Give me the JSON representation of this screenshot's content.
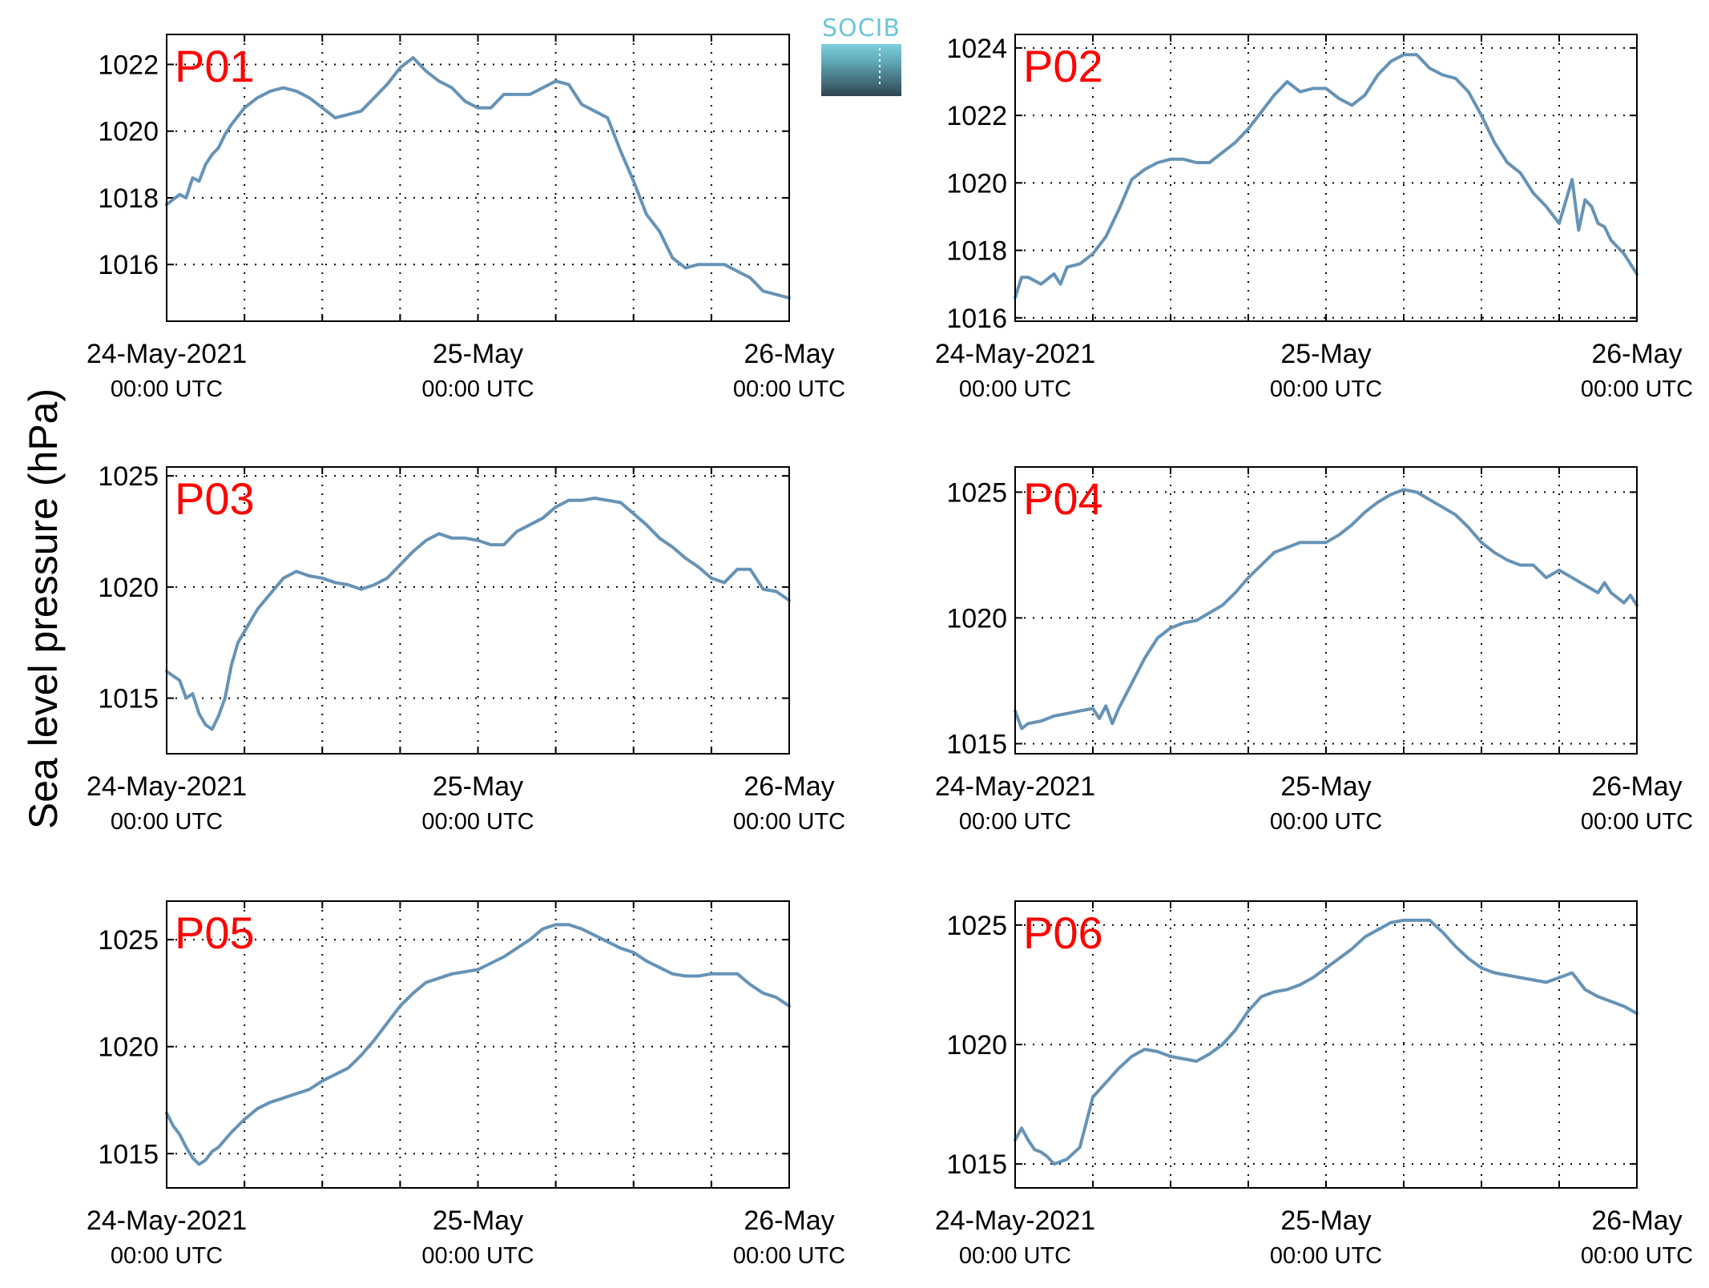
{
  "figure": {
    "ylabel": "Sea level pressure (hPa)",
    "logo_text": "SOCIB",
    "colors": {
      "series": "#6693b6",
      "panel_label": "#ff0000"
    }
  },
  "chart_data": [
    {
      "type": "line",
      "panel_label": "P01",
      "x_unit": "hours since 24-May-2021 00:00 UTC",
      "xlim": [
        0,
        48
      ],
      "xticks": [
        {
          "main": "24-May-2021",
          "sub": "00:00 UTC"
        },
        {
          "main": "25-May",
          "sub": "00:00 UTC"
        },
        {
          "main": "26-May",
          "sub": "00:00 UTC"
        }
      ],
      "ylim": [
        1014.3,
        1022.9
      ],
      "yticks": [
        1016,
        1018,
        1020,
        1022
      ],
      "grid": true,
      "x": [
        0,
        1,
        1.5,
        2,
        2.5,
        3,
        3.5,
        4,
        4.5,
        5,
        6,
        7,
        8,
        9,
        10,
        11,
        12,
        13,
        14,
        15,
        16,
        17,
        18,
        19,
        20,
        21,
        21.5,
        22,
        23,
        24,
        25,
        26,
        27,
        28,
        29,
        30,
        31,
        32,
        33,
        34,
        35,
        36,
        37,
        38,
        39,
        40,
        41,
        42,
        43,
        44,
        45,
        46,
        47,
        48
      ],
      "y": [
        1017.8,
        1018.1,
        1018.0,
        1018.6,
        1018.5,
        1019.0,
        1019.3,
        1019.5,
        1019.9,
        1020.2,
        1020.7,
        1021.0,
        1021.2,
        1021.3,
        1021.2,
        1021.0,
        1020.7,
        1020.4,
        1020.5,
        1020.6,
        1021.0,
        1021.4,
        1021.9,
        1022.2,
        1021.8,
        1021.5,
        1021.4,
        1021.3,
        1020.9,
        1020.7,
        1020.7,
        1021.1,
        1021.1,
        1021.1,
        1021.3,
        1021.5,
        1021.4,
        1020.8,
        1020.6,
        1020.4,
        1019.4,
        1018.5,
        1017.5,
        1017.0,
        1016.2,
        1015.9,
        1016.0,
        1016.0,
        1016.0,
        1015.8,
        1015.6,
        1015.2,
        1015.1,
        1015.0
      ]
    },
    {
      "type": "line",
      "panel_label": "P02",
      "x_unit": "hours since 24-May-2021 00:00 UTC",
      "xlim": [
        0,
        48
      ],
      "xticks": [
        {
          "main": "24-May-2021",
          "sub": "00:00 UTC"
        },
        {
          "main": "25-May",
          "sub": "00:00 UTC"
        },
        {
          "main": "26-May",
          "sub": "00:00 UTC"
        }
      ],
      "ylim": [
        1015.9,
        1024.4
      ],
      "yticks": [
        1016,
        1018,
        1020,
        1022,
        1024
      ],
      "grid": true,
      "x": [
        0,
        0.5,
        1,
        2,
        3,
        3.5,
        4,
        5,
        6,
        7,
        8,
        9,
        10,
        11,
        12,
        13,
        14,
        15,
        16,
        17,
        18,
        19,
        20,
        21,
        22,
        23,
        24,
        25,
        26,
        27,
        28,
        29,
        30,
        31,
        32,
        33,
        34,
        35,
        36,
        37,
        38,
        39,
        40,
        41,
        42,
        43,
        43.5,
        44,
        44.5,
        45,
        45.5,
        46,
        47,
        48
      ],
      "y": [
        1016.6,
        1017.2,
        1017.2,
        1017.0,
        1017.3,
        1017.0,
        1017.5,
        1017.6,
        1017.9,
        1018.4,
        1019.2,
        1020.1,
        1020.4,
        1020.6,
        1020.7,
        1020.7,
        1020.6,
        1020.6,
        1020.9,
        1021.2,
        1021.6,
        1022.1,
        1022.6,
        1023.0,
        1022.7,
        1022.8,
        1022.8,
        1022.5,
        1022.3,
        1022.6,
        1023.2,
        1023.6,
        1023.8,
        1023.8,
        1023.4,
        1023.2,
        1023.1,
        1022.7,
        1022.0,
        1021.2,
        1020.6,
        1020.3,
        1019.7,
        1019.3,
        1018.8,
        1020.1,
        1018.6,
        1019.5,
        1019.3,
        1018.8,
        1018.7,
        1018.3,
        1017.9,
        1017.3
      ]
    },
    {
      "type": "line",
      "panel_label": "P03",
      "x_unit": "hours since 24-May-2021 00:00 UTC",
      "xlim": [
        0,
        48
      ],
      "xticks": [
        {
          "main": "24-May-2021",
          "sub": "00:00 UTC"
        },
        {
          "main": "25-May",
          "sub": "00:00 UTC"
        },
        {
          "main": "26-May",
          "sub": "00:00 UTC"
        }
      ],
      "ylim": [
        1012.5,
        1025.4
      ],
      "yticks": [
        1015,
        1020,
        1025
      ],
      "grid": true,
      "x": [
        0,
        1,
        1.5,
        2,
        2.5,
        3,
        3.5,
        4,
        4.5,
        5,
        5.5,
        6,
        7,
        8,
        9,
        10,
        11,
        12,
        13,
        14,
        15,
        16,
        17,
        18,
        19,
        20,
        21,
        22,
        23,
        24,
        25,
        26,
        27,
        28,
        29,
        30,
        31,
        32,
        33,
        34,
        35,
        36,
        37,
        38,
        39,
        40,
        41,
        42,
        43,
        44,
        45,
        46,
        47,
        48
      ],
      "y": [
        1016.2,
        1015.8,
        1015.0,
        1015.2,
        1014.3,
        1013.8,
        1013.6,
        1014.2,
        1015.0,
        1016.5,
        1017.5,
        1018.0,
        1019.0,
        1019.7,
        1020.4,
        1020.7,
        1020.5,
        1020.4,
        1020.2,
        1020.1,
        1019.9,
        1020.1,
        1020.4,
        1021.0,
        1021.6,
        1022.1,
        1022.4,
        1022.2,
        1022.2,
        1022.1,
        1021.9,
        1021.9,
        1022.5,
        1022.8,
        1023.1,
        1023.6,
        1023.9,
        1023.9,
        1024.0,
        1023.9,
        1023.8,
        1023.3,
        1022.8,
        1022.2,
        1021.8,
        1021.3,
        1020.9,
        1020.4,
        1020.2,
        1020.8,
        1020.8,
        1019.9,
        1019.8,
        1019.4
      ]
    },
    {
      "type": "line",
      "panel_label": "P04",
      "x_unit": "hours since 24-May-2021 00:00 UTC",
      "xlim": [
        0,
        48
      ],
      "xticks": [
        {
          "main": "24-May-2021",
          "sub": "00:00 UTC"
        },
        {
          "main": "25-May",
          "sub": "00:00 UTC"
        },
        {
          "main": "26-May",
          "sub": "00:00 UTC"
        }
      ],
      "ylim": [
        1014.6,
        1026.0
      ],
      "yticks": [
        1015,
        1020,
        1025
      ],
      "grid": true,
      "x": [
        0,
        0.5,
        1,
        2,
        3,
        4,
        5,
        6,
        6.5,
        7,
        7.5,
        8,
        9,
        10,
        11,
        12,
        13,
        14,
        15,
        16,
        17,
        18,
        19,
        20,
        21,
        22,
        23,
        24,
        25,
        26,
        27,
        28,
        29,
        30,
        31,
        32,
        33,
        34,
        35,
        36,
        37,
        38,
        39,
        40,
        41,
        42,
        43,
        44,
        45,
        45.5,
        46,
        47,
        47.5,
        48
      ],
      "y": [
        1016.3,
        1015.6,
        1015.8,
        1015.9,
        1016.1,
        1016.2,
        1016.3,
        1016.4,
        1016.0,
        1016.5,
        1015.8,
        1016.4,
        1017.4,
        1018.4,
        1019.2,
        1019.6,
        1019.8,
        1019.9,
        1020.2,
        1020.5,
        1021.0,
        1021.6,
        1022.1,
        1022.6,
        1022.8,
        1023.0,
        1023.0,
        1023.0,
        1023.3,
        1023.7,
        1024.2,
        1024.6,
        1024.9,
        1025.1,
        1025.0,
        1024.7,
        1024.4,
        1024.1,
        1023.6,
        1023.0,
        1022.6,
        1022.3,
        1022.1,
        1022.1,
        1021.6,
        1021.9,
        1021.6,
        1021.3,
        1021.0,
        1021.4,
        1021.0,
        1020.6,
        1020.9,
        1020.5
      ]
    },
    {
      "type": "line",
      "panel_label": "P05",
      "x_unit": "hours since 24-May-2021 00:00 UTC",
      "xlim": [
        0,
        48
      ],
      "xticks": [
        {
          "main": "24-May-2021",
          "sub": "00:00 UTC"
        },
        {
          "main": "25-May",
          "sub": "00:00 UTC"
        },
        {
          "main": "26-May",
          "sub": "00:00 UTC"
        }
      ],
      "ylim": [
        1013.4,
        1026.8
      ],
      "yticks": [
        1015,
        1020,
        1025
      ],
      "grid": true,
      "x": [
        0,
        0.5,
        1,
        1.5,
        2,
        2.5,
        3,
        3.5,
        4,
        5,
        6,
        7,
        8,
        9,
        10,
        11,
        12,
        13,
        14,
        15,
        16,
        17,
        18,
        19,
        20,
        21,
        22,
        23,
        24,
        25,
        26,
        27,
        28,
        29,
        30,
        31,
        32,
        33,
        34,
        35,
        36,
        37,
        38,
        39,
        40,
        41,
        42,
        43,
        44,
        45,
        46,
        47,
        48
      ],
      "y": [
        1016.9,
        1016.3,
        1015.9,
        1015.3,
        1014.8,
        1014.5,
        1014.7,
        1015.1,
        1015.3,
        1016.0,
        1016.6,
        1017.1,
        1017.4,
        1017.6,
        1017.8,
        1018.0,
        1018.4,
        1018.7,
        1019.0,
        1019.6,
        1020.3,
        1021.1,
        1021.9,
        1022.5,
        1023.0,
        1023.2,
        1023.4,
        1023.5,
        1023.6,
        1023.9,
        1024.2,
        1024.6,
        1025.0,
        1025.5,
        1025.7,
        1025.7,
        1025.5,
        1025.2,
        1024.9,
        1024.6,
        1024.4,
        1024.0,
        1023.7,
        1023.4,
        1023.3,
        1023.3,
        1023.4,
        1023.4,
        1023.4,
        1022.9,
        1022.5,
        1022.3,
        1021.9
      ]
    },
    {
      "type": "line",
      "panel_label": "P06",
      "x_unit": "hours since 24-May-2021 00:00 UTC",
      "xlim": [
        0,
        48
      ],
      "xticks": [
        {
          "main": "24-May-2021",
          "sub": "00:00 UTC"
        },
        {
          "main": "25-May",
          "sub": "00:00 UTC"
        },
        {
          "main": "26-May",
          "sub": "00:00 UTC"
        }
      ],
      "ylim": [
        1014.0,
        1026.0
      ],
      "yticks": [
        1015,
        1020,
        1025
      ],
      "grid": true,
      "x": [
        0,
        0.5,
        1,
        1.5,
        2,
        2.5,
        3,
        3.5,
        4,
        5,
        6,
        7,
        8,
        9,
        10,
        11,
        12,
        13,
        14,
        15,
        16,
        17,
        18,
        19,
        20,
        21,
        22,
        23,
        24,
        25,
        26,
        27,
        28,
        29,
        30,
        31,
        32,
        33,
        34,
        35,
        36,
        37,
        38,
        39,
        40,
        41,
        42,
        43,
        44,
        45,
        46,
        47,
        48
      ],
      "y": [
        1016.0,
        1016.5,
        1016.0,
        1015.6,
        1015.5,
        1015.3,
        1015.0,
        1015.1,
        1015.2,
        1015.7,
        1017.8,
        1018.4,
        1019.0,
        1019.5,
        1019.8,
        1019.7,
        1019.5,
        1019.4,
        1019.3,
        1019.6,
        1020.0,
        1020.6,
        1021.4,
        1022.0,
        1022.2,
        1022.3,
        1022.5,
        1022.8,
        1023.2,
        1023.6,
        1024.0,
        1024.5,
        1024.8,
        1025.1,
        1025.2,
        1025.2,
        1025.2,
        1024.7,
        1024.1,
        1023.6,
        1023.2,
        1023.0,
        1022.9,
        1022.8,
        1022.7,
        1022.6,
        1022.8,
        1023.0,
        1022.3,
        1022.0,
        1021.8,
        1021.6,
        1021.3
      ]
    }
  ]
}
